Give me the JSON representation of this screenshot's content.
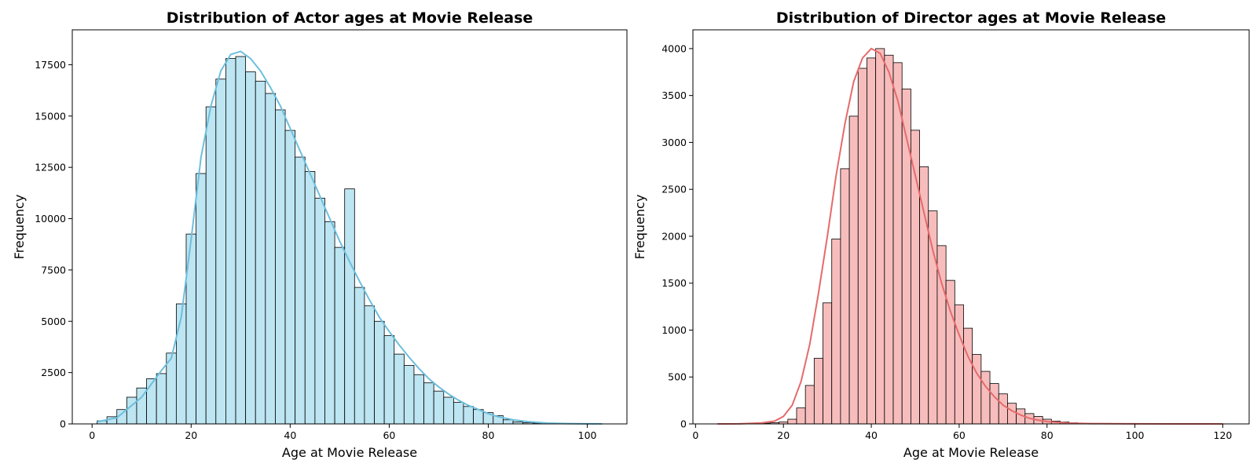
{
  "chart_data": [
    {
      "type": "bar",
      "title": "Distribution of Actor ages at Movie Release",
      "xlabel": "Age at Movie Release",
      "ylabel": "Frequency",
      "xlim": [
        -4,
        108
      ],
      "ylim": [
        0,
        19200
      ],
      "xticks": [
        0,
        20,
        40,
        60,
        80,
        100
      ],
      "yticks": [
        0,
        2500,
        5000,
        7500,
        10000,
        12500,
        15000,
        17500
      ],
      "bin_start": 1,
      "bin_width": 2,
      "values": [
        150,
        350,
        700,
        1300,
        1750,
        2200,
        2450,
        3450,
        5850,
        9250,
        12200,
        15450,
        16800,
        17800,
        17900,
        17150,
        16700,
        16100,
        15300,
        14300,
        13000,
        12300,
        11000,
        9850,
        8600,
        11450,
        6650,
        5750,
        5000,
        4300,
        3400,
        2850,
        2400,
        2000,
        1600,
        1300,
        1050,
        850,
        700,
        550,
        400,
        200,
        100,
        60,
        40,
        20,
        10,
        5,
        2,
        1,
        1
      ],
      "kde": [
        [
          1,
          100
        ],
        [
          5,
          300
        ],
        [
          10,
          1300
        ],
        [
          14,
          2600
        ],
        [
          16,
          3200
        ],
        [
          18,
          5200
        ],
        [
          20,
          9000
        ],
        [
          22,
          13000
        ],
        [
          24,
          15500
        ],
        [
          26,
          17200
        ],
        [
          28,
          18000
        ],
        [
          30,
          18150
        ],
        [
          32,
          17800
        ],
        [
          34,
          17200
        ],
        [
          36,
          16400
        ],
        [
          38,
          15500
        ],
        [
          40,
          14400
        ],
        [
          42,
          13300
        ],
        [
          44,
          12200
        ],
        [
          46,
          11100
        ],
        [
          48,
          10000
        ],
        [
          50,
          8900
        ],
        [
          52,
          7900
        ],
        [
          54,
          6950
        ],
        [
          56,
          6050
        ],
        [
          58,
          5200
        ],
        [
          60,
          4500
        ],
        [
          62,
          3850
        ],
        [
          64,
          3250
        ],
        [
          66,
          2700
        ],
        [
          68,
          2200
        ],
        [
          70,
          1800
        ],
        [
          72,
          1450
        ],
        [
          74,
          1150
        ],
        [
          76,
          900
        ],
        [
          78,
          700
        ],
        [
          80,
          500
        ],
        [
          82,
          350
        ],
        [
          85,
          200
        ],
        [
          88,
          110
        ],
        [
          92,
          40
        ],
        [
          96,
          15
        ],
        [
          100,
          5
        ],
        [
          103,
          2
        ]
      ],
      "bar_color": "#bde5f2",
      "kde_color": "#6cbfdd"
    },
    {
      "type": "bar",
      "title": "Distribution of Director ages at Movie Release",
      "xlabel": "Age at Movie Release",
      "ylabel": "Frequency",
      "xlim": [
        -0.6,
        126
      ],
      "ylim": [
        0,
        4200
      ],
      "xticks": [
        0,
        20,
        40,
        60,
        80,
        100,
        120
      ],
      "yticks": [
        0,
        500,
        1000,
        1500,
        2000,
        2500,
        3000,
        3500,
        4000
      ],
      "bin_start": 5,
      "bin_width": 2,
      "values": [
        0,
        1,
        2,
        3,
        5,
        8,
        12,
        20,
        50,
        170,
        410,
        700,
        1290,
        1970,
        2720,
        3280,
        3790,
        3900,
        4000,
        3930,
        3850,
        3570,
        3130,
        2740,
        2270,
        1900,
        1530,
        1270,
        1020,
        740,
        560,
        430,
        320,
        220,
        160,
        110,
        80,
        50,
        30,
        20,
        12,
        8,
        5,
        3,
        2,
        1,
        1,
        1,
        0,
        0,
        0,
        0,
        0,
        0,
        0,
        0,
        0,
        0
      ],
      "kde": [
        [
          5,
          0
        ],
        [
          10,
          1
        ],
        [
          15,
          10
        ],
        [
          18,
          30
        ],
        [
          20,
          80
        ],
        [
          22,
          200
        ],
        [
          24,
          450
        ],
        [
          26,
          850
        ],
        [
          28,
          1400
        ],
        [
          30,
          2000
        ],
        [
          32,
          2650
        ],
        [
          34,
          3200
        ],
        [
          36,
          3650
        ],
        [
          38,
          3900
        ],
        [
          40,
          4000
        ],
        [
          42,
          3950
        ],
        [
          44,
          3750
        ],
        [
          46,
          3450
        ],
        [
          48,
          3050
        ],
        [
          50,
          2650
        ],
        [
          52,
          2250
        ],
        [
          54,
          1850
        ],
        [
          56,
          1500
        ],
        [
          58,
          1200
        ],
        [
          60,
          950
        ],
        [
          62,
          720
        ],
        [
          64,
          540
        ],
        [
          66,
          400
        ],
        [
          68,
          290
        ],
        [
          70,
          200
        ],
        [
          72,
          140
        ],
        [
          74,
          95
        ],
        [
          76,
          60
        ],
        [
          78,
          40
        ],
        [
          80,
          25
        ],
        [
          85,
          8
        ],
        [
          90,
          3
        ],
        [
          100,
          1
        ],
        [
          110,
          0
        ],
        [
          120,
          0
        ]
      ],
      "bar_color": "#f7bdbd",
      "kde_color": "#e56b6b"
    }
  ]
}
